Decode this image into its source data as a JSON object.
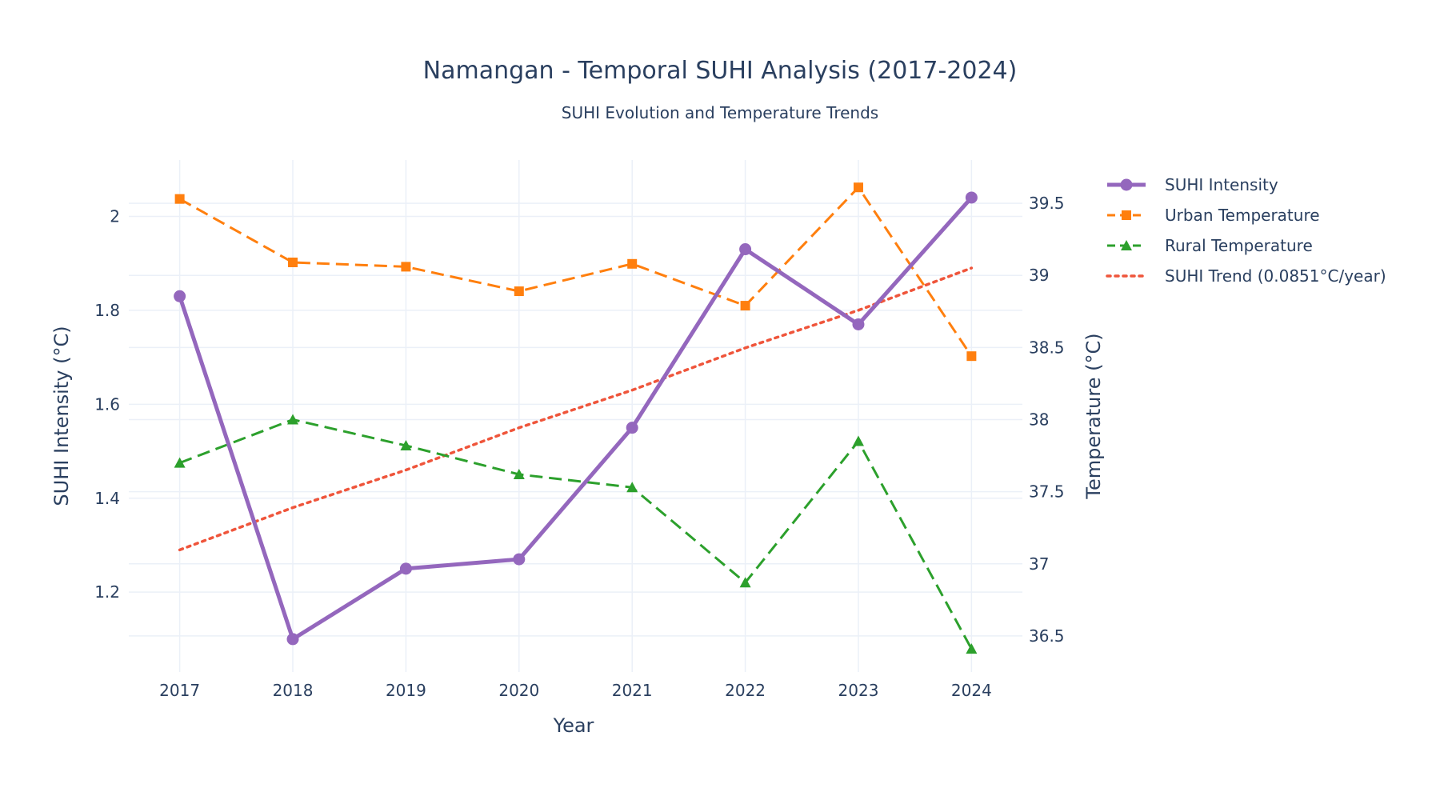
{
  "chart_data": {
    "type": "line",
    "title": "Namangan - Temporal SUHI Analysis (2017-2024)",
    "subtitle": "SUHI Evolution and Temperature Trends",
    "xlabel": "Year",
    "ylabel": "SUHI Intensity (°C)",
    "y2label": "Temperature (°C)",
    "x": [
      2017,
      2018,
      2019,
      2020,
      2021,
      2022,
      2023,
      2024
    ],
    "xlim": [
      2016.55,
      2024.45
    ],
    "ylim": [
      1.03,
      2.12
    ],
    "y2lim": [
      36.25,
      39.8
    ],
    "yticks": [
      1.2,
      1.4,
      1.6,
      1.8,
      2
    ],
    "y2ticks": [
      36.5,
      37,
      37.5,
      38,
      38.5,
      39,
      39.5
    ],
    "grid": true,
    "legend_position": "right",
    "series": [
      {
        "name": "SUHI Intensity",
        "axis": "y",
        "color": "#9467bd",
        "dash": "solid",
        "marker": "circle",
        "values": [
          1.83,
          1.1,
          1.25,
          1.27,
          1.55,
          1.93,
          1.77,
          2.04
        ]
      },
      {
        "name": "Urban Temperature",
        "axis": "y2",
        "color": "#ff7f0e",
        "dash": "dashed",
        "marker": "square",
        "values": [
          39.53,
          39.09,
          39.06,
          38.89,
          39.08,
          38.79,
          39.61,
          38.44
        ]
      },
      {
        "name": "Rural Temperature",
        "axis": "y2",
        "color": "#2ca02c",
        "dash": "dashed",
        "marker": "triangle-up",
        "values": [
          37.7,
          38.0,
          37.82,
          37.62,
          37.53,
          36.87,
          37.85,
          36.41
        ]
      },
      {
        "name": "SUHI Trend (0.0851°C/year)",
        "axis": "y",
        "color": "#ef553b",
        "dash": "dotted",
        "marker": "none",
        "values": [
          1.29,
          1.38,
          1.46,
          1.55,
          1.63,
          1.72,
          1.8,
          1.89
        ]
      }
    ]
  }
}
